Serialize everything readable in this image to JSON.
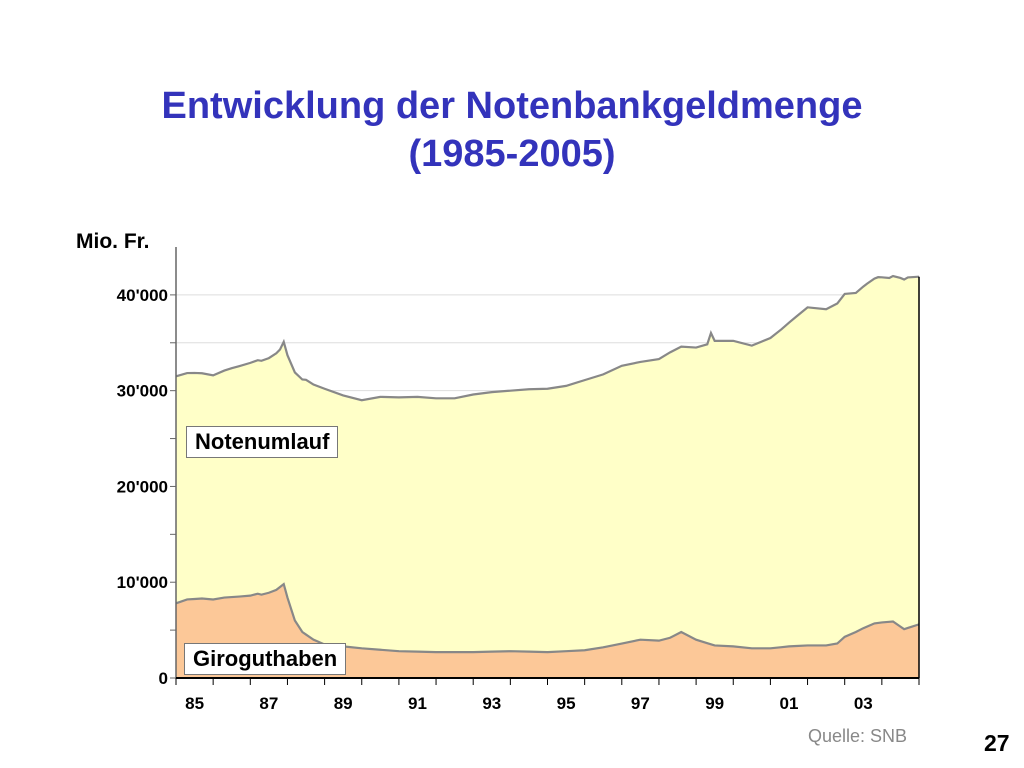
{
  "title_line1": "Entwicklung der Notenbankgeldmenge",
  "title_line2": "(1985-2005)",
  "source": "Quelle: SNB",
  "page_number": "27",
  "chart_data": {
    "type": "area",
    "ylabel": "Mio. Fr.",
    "ylim": [
      0,
      45000
    ],
    "yticks": [
      0,
      10000,
      20000,
      30000,
      40000
    ],
    "ytick_labels": [
      "0",
      "10'000",
      "20'000",
      "30'000",
      "40'000"
    ],
    "xlim": [
      1985,
      2005
    ],
    "xticks": [
      1985.5,
      1987.5,
      1989.5,
      1991.5,
      1993.5,
      1995.5,
      1997.5,
      1999.5,
      2001.5,
      2003.5
    ],
    "xtick_labels": [
      "85",
      "87",
      "89",
      "91",
      "93",
      "95",
      "97",
      "99",
      "01",
      "03"
    ],
    "colors": {
      "giro": "#fcc898",
      "noten": "#ffffc8",
      "line": "#888888"
    },
    "stacked": true,
    "series": [
      {
        "name": "Giroguthaben",
        "x": [
          1985.0,
          1985.3,
          1985.7,
          1986.0,
          1986.3,
          1986.7,
          1987.0,
          1987.2,
          1987.3,
          1987.5,
          1987.7,
          1987.9,
          1988.0,
          1988.2,
          1988.4,
          1988.7,
          1989.0,
          1989.5,
          1990.0,
          1991.0,
          1992.0,
          1993.0,
          1994.0,
          1995.0,
          1995.5,
          1996.0,
          1996.5,
          1997.0,
          1997.5,
          1998.0,
          1998.3,
          1998.6,
          1999.0,
          1999.5,
          2000.0,
          2000.5,
          2001.0,
          2001.5,
          2002.0,
          2002.5,
          2002.8,
          2003.0,
          2003.3,
          2003.5,
          2003.8,
          2004.0,
          2004.3,
          2004.6,
          2005.0
        ],
        "values": [
          7800,
          8200,
          8300,
          8200,
          8400,
          8500,
          8600,
          8800,
          8700,
          8900,
          9200,
          9800,
          8400,
          6000,
          4800,
          4000,
          3500,
          3300,
          3100,
          2800,
          2700,
          2700,
          2800,
          2700,
          2800,
          2900,
          3200,
          3600,
          4000,
          3900,
          4200,
          4800,
          4000,
          3400,
          3300,
          3100,
          3100,
          3300,
          3400,
          3400,
          3600,
          4300,
          4800,
          5200,
          5700,
          5800,
          5900,
          5100,
          5600
        ]
      },
      {
        "name": "Notenumlauf",
        "x": [
          1985.0,
          1985.5,
          1986.0,
          1986.5,
          1987.0,
          1987.5,
          1987.8,
          1987.9,
          1988.0,
          1988.2,
          1988.5,
          1989.0,
          1989.5,
          1990.0,
          1990.5,
          1991.0,
          1991.5,
          1992.0,
          1992.5,
          1993.0,
          1993.5,
          1994.0,
          1994.5,
          1995.0,
          1995.5,
          1996.0,
          1996.5,
          1997.0,
          1997.5,
          1998.0,
          1998.3,
          1998.6,
          1999.0,
          1999.3,
          1999.4,
          1999.5,
          2000.0,
          2000.5,
          2001.0,
          2001.3,
          2001.7,
          2002.0,
          2002.5,
          2002.8,
          2003.0,
          2003.3,
          2003.6,
          2003.9,
          2004.2,
          2004.5,
          2004.7,
          2005.0
        ],
        "values": [
          23700,
          23600,
          23400,
          23900,
          24300,
          24500,
          24800,
          25300,
          25300,
          25900,
          26600,
          26700,
          26200,
          25900,
          26400,
          26500,
          26600,
          26500,
          26500,
          26900,
          27100,
          27200,
          27400,
          27500,
          27700,
          28200,
          28500,
          29000,
          29000,
          29400,
          29800,
          29800,
          30500,
          31200,
          32500,
          31800,
          31900,
          31600,
          32400,
          33200,
          34400,
          35300,
          35100,
          35500,
          35800,
          35400,
          35800,
          36100,
          35900,
          36400,
          36600,
          36300
        ]
      }
    ]
  }
}
